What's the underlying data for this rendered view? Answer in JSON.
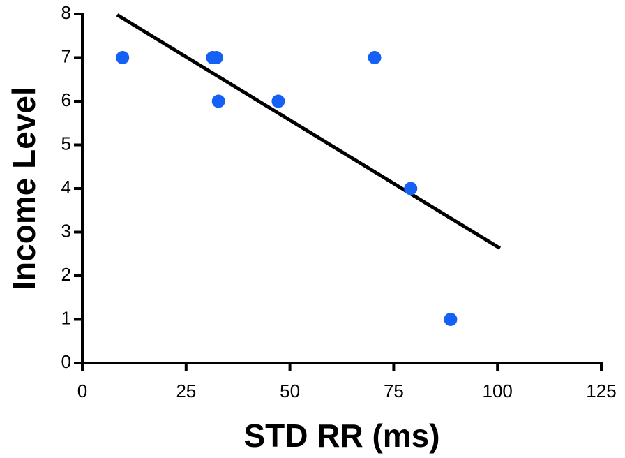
{
  "chart_data": {
    "type": "scatter",
    "x_label": "STD RR (ms)",
    "y_label": "Income Level",
    "x": [
      9.7,
      31.4,
      32.3,
      32.8,
      47.2,
      70.4,
      79.1,
      88.7
    ],
    "values": [
      7,
      7,
      7,
      6,
      6,
      7,
      4,
      1
    ],
    "color": "#1560f5",
    "fit_line": {
      "x": [
        8.4,
        100.6
      ],
      "values": [
        7.98,
        2.63
      ],
      "color": "#000000"
    },
    "xlim": [
      0,
      125
    ],
    "xticks": [
      0,
      25,
      50,
      75,
      100,
      125
    ],
    "ylim": [
      0,
      8
    ],
    "yticks": [
      0,
      1,
      2,
      3,
      4,
      5,
      6,
      7,
      8
    ],
    "grid": false
  }
}
